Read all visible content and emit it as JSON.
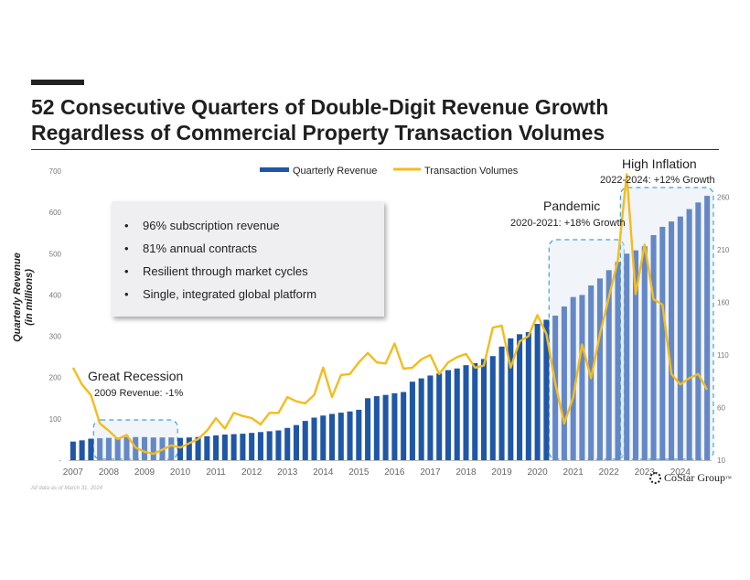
{
  "page": {
    "title_line1": "52 Consecutive Quarters of Double-Digit Revenue Growth",
    "title_line2": "Regardless of Commercial Property Transaction Volumes",
    "footnote": "All data as of March 31, 2024",
    "logo_text": "CoStar Group",
    "logo_mark": "™"
  },
  "bullets": [
    "96% subscription revenue",
    "81% annual contracts",
    "Resilient through market cycles",
    "Single, integrated global platform"
  ],
  "annotations": [
    {
      "title": "Great Recession",
      "subtitle": "2009 Revenue: -1%"
    },
    {
      "title": "Pandemic",
      "subtitle": "2020-2021: +18% Growth"
    },
    {
      "title": "High Inflation",
      "subtitle": "2022-2024: +12% Growth"
    }
  ],
  "colors": {
    "bar_dark": "#1f57a6",
    "bar_light": "#6488c7",
    "line": "#f4bc1c",
    "box": "#3aa6d8"
  },
  "chart_data": {
    "type": "bar",
    "title": "",
    "ylabel": "Quarterly Revenue (in millions)",
    "y2label": "",
    "xlabel": "",
    "ylim": [
      0,
      700
    ],
    "y2lim": [
      10,
      285
    ],
    "y_ticks": [
      "-",
      "100",
      "200",
      "300",
      "400",
      "500",
      "600",
      "700"
    ],
    "y2_ticks": [
      "10",
      "60",
      "110",
      "160",
      "210",
      "260"
    ],
    "x_ticks": [
      "2007",
      "2008",
      "2009",
      "2010",
      "2011",
      "2012",
      "2013",
      "2014",
      "2015",
      "2016",
      "2017",
      "2018",
      "2019",
      "2020",
      "2021",
      "2022",
      "2023",
      "2024"
    ],
    "legend": [
      "Quarterly Revenue",
      "Transaction Volumes"
    ],
    "series": [
      {
        "name": "Quarterly Revenue",
        "axis": "left",
        "values": [
          45,
          48,
          52,
          53,
          54,
          55,
          56,
          56,
          56,
          55,
          55,
          55,
          54,
          55,
          56,
          58,
          60,
          62,
          63,
          64,
          66,
          68,
          70,
          72,
          78,
          85,
          95,
          103,
          108,
          112,
          115,
          118,
          122,
          150,
          155,
          158,
          162,
          165,
          190,
          198,
          205,
          210,
          218,
          222,
          230,
          235,
          245,
          252,
          275,
          295,
          305,
          310,
          330,
          340,
          350,
          372,
          395,
          400,
          423,
          440,
          460,
          480,
          500,
          508,
          518,
          545,
          565,
          578,
          590,
          608,
          624,
          640
        ]
      },
      {
        "name": "Transaction Volumes",
        "axis": "right",
        "values": [
          98,
          82,
          72,
          45,
          38,
          30,
          34,
          22,
          18,
          16,
          20,
          24,
          22,
          26,
          30,
          38,
          50,
          40,
          55,
          52,
          50,
          44,
          55,
          55,
          70,
          66,
          64,
          72,
          98,
          70,
          91,
          92,
          103,
          112,
          103,
          102,
          121,
          97,
          98,
          106,
          110,
          92,
          103,
          108,
          111,
          98,
          100,
          136,
          138,
          98,
          123,
          128,
          148,
          130,
          83,
          45,
          70,
          120,
          88,
          130,
          165,
          200,
          282,
          168,
          215,
          163,
          158,
          92,
          82,
          88,
          92,
          77
        ]
      }
    ]
  }
}
